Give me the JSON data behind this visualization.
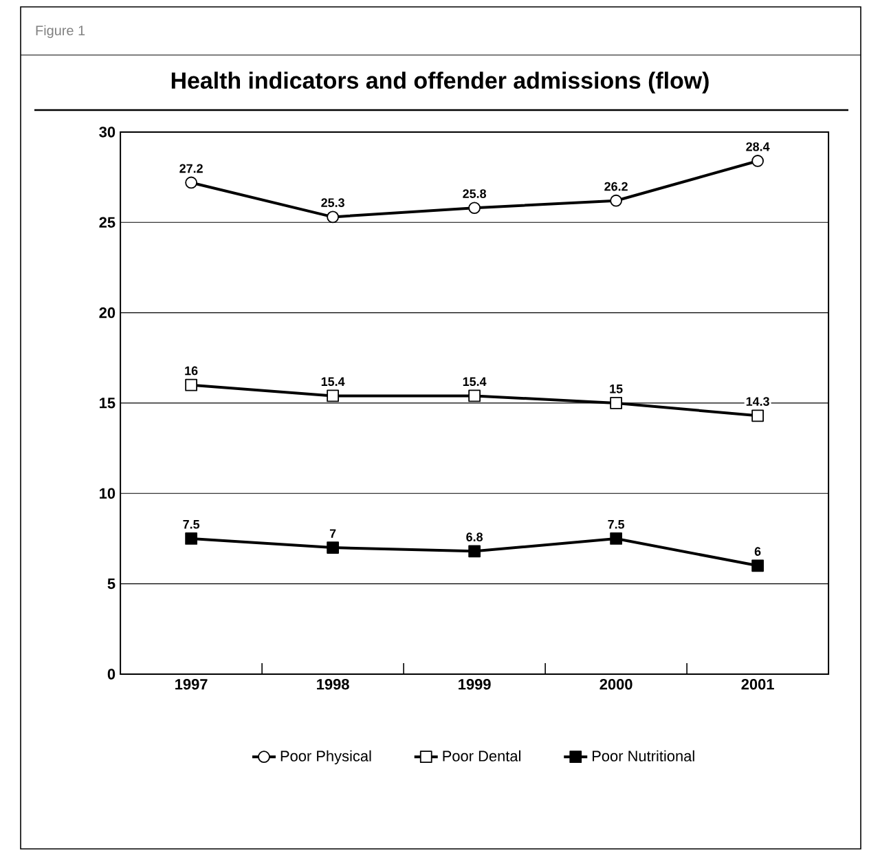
{
  "chart_data": {
    "type": "line",
    "title": "Health indicators and offender admissions (flow)",
    "annotations": [
      "Figure 1"
    ],
    "categories": [
      "1997",
      "1998",
      "1999",
      "2000",
      "2001"
    ],
    "series": [
      {
        "name": "Poor Physical",
        "color": "#000000",
        "marker": "circle",
        "values": [
          27.2,
          25.3,
          25.8,
          26.2,
          28.4
        ]
      },
      {
        "name": "Poor Dental",
        "color": "#000000",
        "marker": "square",
        "values": [
          16,
          15.4,
          15.4,
          15,
          14.3
        ]
      },
      {
        "name": "Poor Nutritional",
        "color": "#000000",
        "marker": "square",
        "values": [
          7.5,
          7,
          6.8,
          7.5,
          6
        ]
      }
    ],
    "ylim": [
      0,
      30
    ],
    "yticks": [
      0,
      5,
      10,
      15,
      20,
      25,
      30
    ],
    "grid": "y",
    "legend": "bottom",
    "data_labels": true,
    "line_style": "solid"
  }
}
